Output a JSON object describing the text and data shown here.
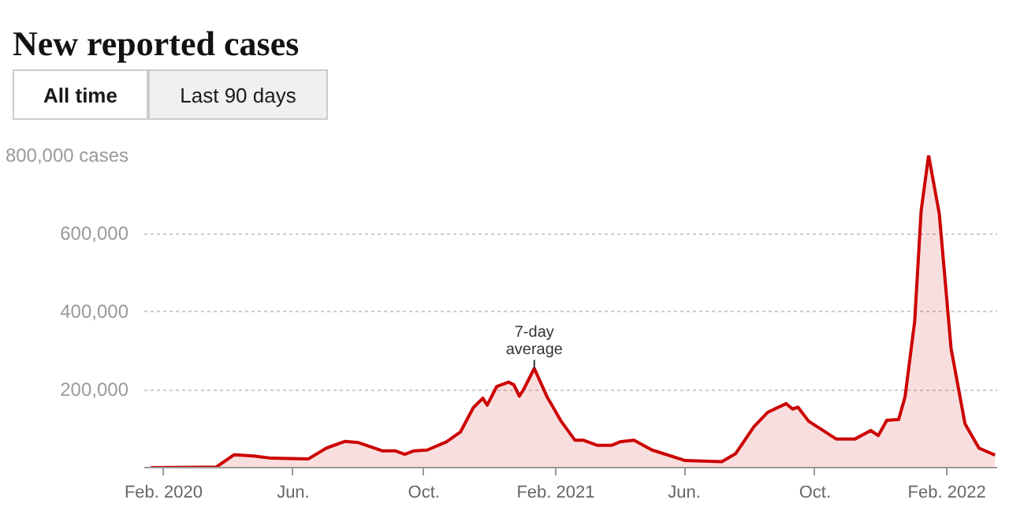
{
  "chart_data": {
    "type": "area",
    "title": "New reported cases",
    "annotations": [
      "All time",
      "Last 90 days",
      {
        "text": "7-day\naverage",
        "x": "2021-01-12",
        "y": 254000
      }
    ],
    "x": [
      "2020-01-20",
      "2020-03-21",
      "2020-04-07",
      "2020-04-25",
      "2020-05-12",
      "2020-06-15",
      "2020-07-02",
      "2020-07-19",
      "2020-08-01",
      "2020-08-23",
      "2020-09-04",
      "2020-09-13",
      "2020-09-22",
      "2020-10-04",
      "2020-10-22",
      "2020-11-04",
      "2020-11-16",
      "2020-11-25",
      "2020-11-29",
      "2020-12-08",
      "2020-12-19",
      "2020-12-24",
      "2020-12-29",
      "2021-01-02",
      "2021-01-12",
      "2021-01-24",
      "2021-02-06",
      "2021-02-19",
      "2021-02-27",
      "2021-03-12",
      "2021-03-25",
      "2021-04-02",
      "2021-04-15",
      "2021-05-02",
      "2021-06-02",
      "2021-07-06",
      "2021-07-19",
      "2021-08-05",
      "2021-08-18",
      "2021-09-04",
      "2021-09-10",
      "2021-09-15",
      "2021-09-25",
      "2021-10-21",
      "2021-11-07",
      "2021-11-22",
      "2021-11-29",
      "2021-12-07",
      "2021-12-18",
      "2021-12-24",
      "2022-01-02",
      "2022-01-08",
      "2022-01-15",
      "2022-01-25",
      "2022-02-05",
      "2022-02-18",
      "2022-03-03",
      "2022-03-18"
    ],
    "series": [
      {
        "color": "#cc0000",
        "values": [
          0,
          1000,
          33000,
          30000,
          24000,
          22000,
          50000,
          67000,
          64000,
          43000,
          43000,
          34000,
          43000,
          45000,
          66000,
          91000,
          153000,
          178000,
          160000,
          208000,
          219000,
          212000,
          183000,
          200000,
          254000,
          181000,
          119000,
          70000,
          70000,
          57000,
          57000,
          66000,
          70000,
          45000,
          18000,
          15000,
          36000,
          105000,
          142000,
          164000,
          150000,
          155000,
          119000,
          73000,
          73000,
          95000,
          82000,
          121000,
          123000,
          181000,
          374000,
          657000,
          800000,
          650000,
          305000,
          112000,
          50000,
          32000
        ]
      }
    ],
    "xlim": [
      "2020-01-14",
      "2022-03-20"
    ],
    "xticks": [
      {
        "value": "2020-02-01",
        "label": "Feb. 2020"
      },
      {
        "value": "2020-06-01",
        "label": "Jun."
      },
      {
        "value": "2020-10-01",
        "label": "Oct."
      },
      {
        "value": "2021-02-01",
        "label": "Feb. 2021"
      },
      {
        "value": "2021-06-01",
        "label": "Jun."
      },
      {
        "value": "2021-10-01",
        "label": "Oct."
      },
      {
        "value": "2022-02-01",
        "label": "Feb. 2022"
      }
    ],
    "ylim": [
      0,
      800000
    ],
    "yticks": [
      {
        "value": 200000,
        "label": "200,000"
      },
      {
        "value": 400000,
        "label": "400,000"
      },
      {
        "value": 600000,
        "label": "600,000"
      },
      {
        "value": 800000,
        "label": "800,000 cases"
      }
    ],
    "grid": "y"
  }
}
